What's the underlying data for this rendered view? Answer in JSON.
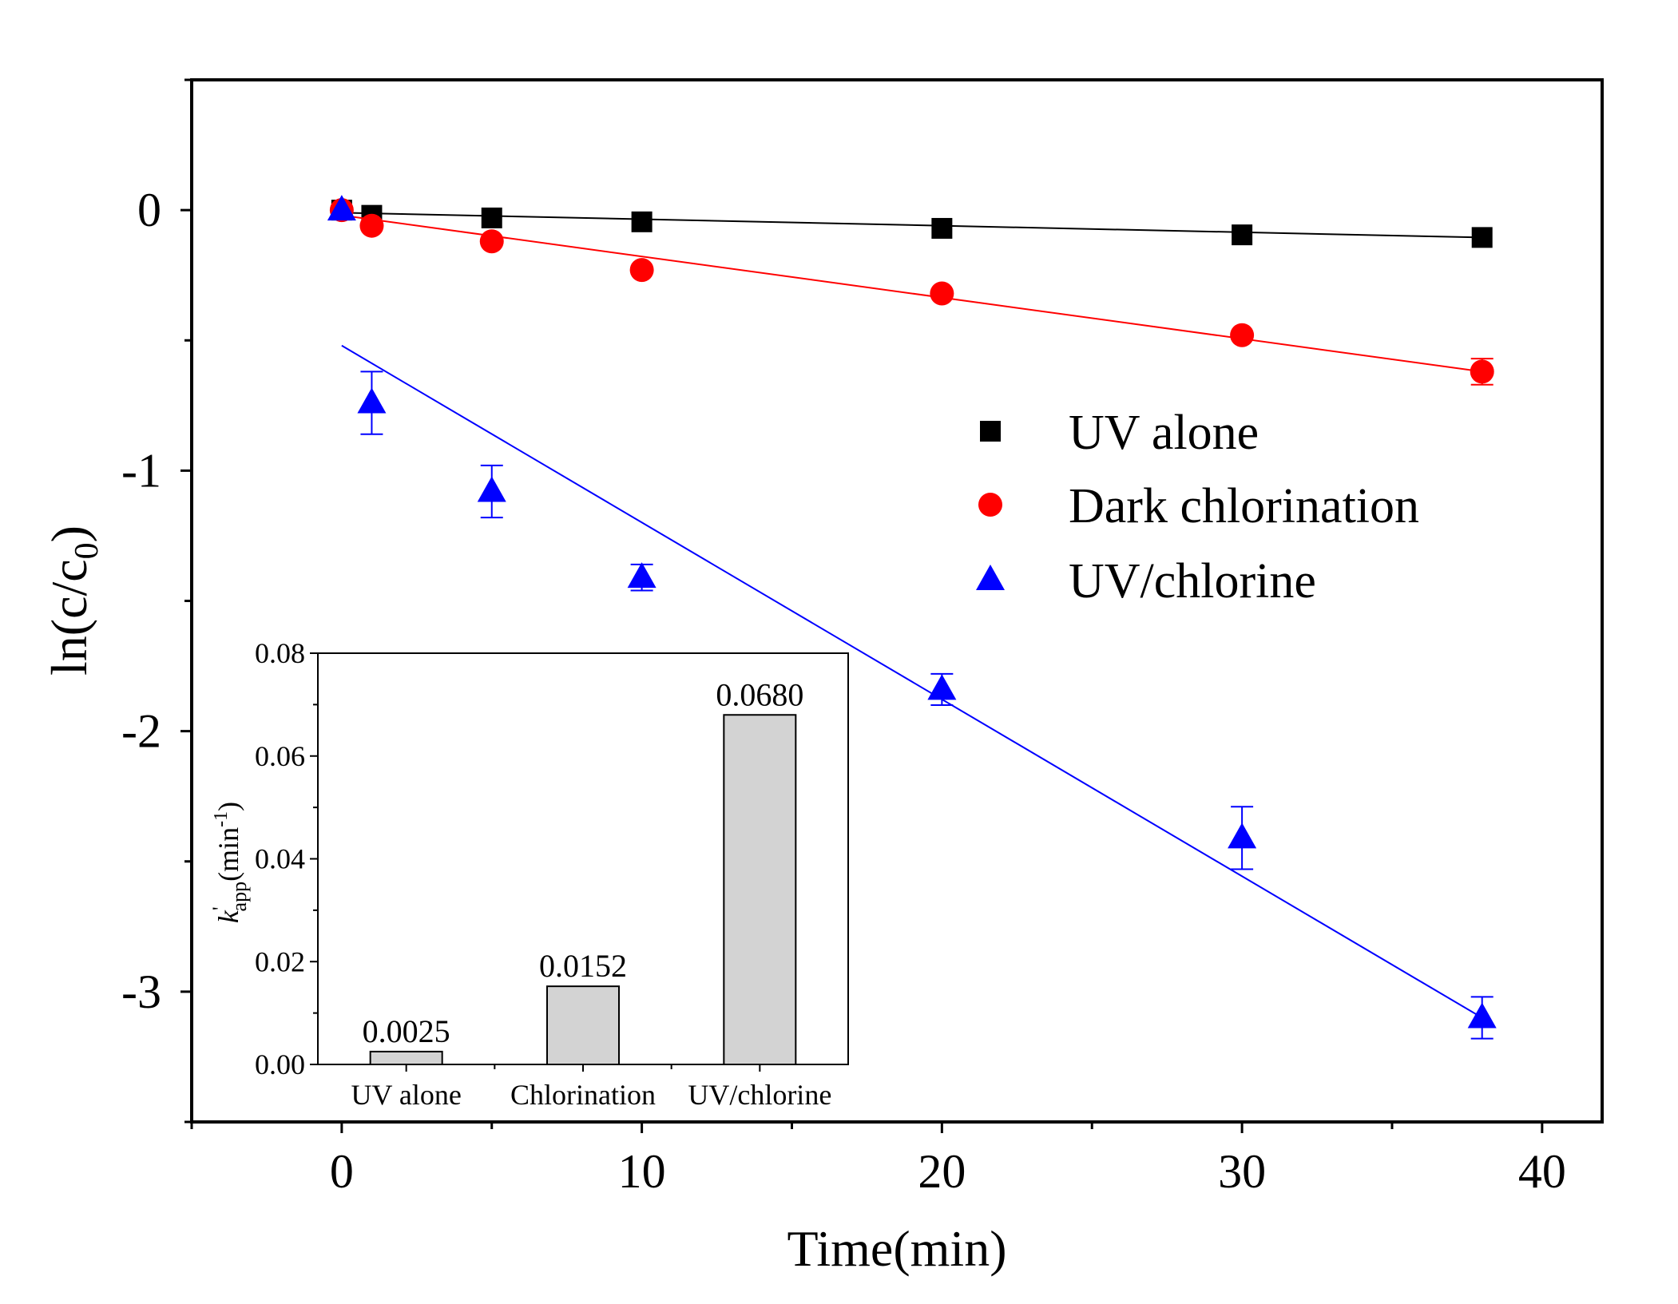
{
  "chart_data": [
    {
      "type": "scatter",
      "title": "",
      "xlabel": "Time(min)",
      "ylabel": "ln(c/c0)",
      "ylabel_parts": {
        "main": "ln(c/c",
        "sub": "0",
        "close": ")"
      },
      "xlim": [
        -5,
        42
      ],
      "ylim": [
        -3.5,
        0.5
      ],
      "xticks": [
        0,
        10,
        20,
        30,
        40
      ],
      "yticks": [
        0,
        -1,
        -2,
        -3
      ],
      "xtick_labels": [
        "0",
        "10",
        "20",
        "30",
        "40"
      ],
      "ytick_labels": [
        "0",
        "-1",
        "-2",
        "-3"
      ],
      "legend_position": "right",
      "series": [
        {
          "name": "UV alone",
          "marker": "square",
          "color": "#000000",
          "x": [
            0,
            1,
            5,
            10,
            20,
            30,
            38
          ],
          "y": [
            0,
            -0.02,
            -0.03,
            -0.045,
            -0.07,
            -0.095,
            -0.105
          ],
          "err": [
            0,
            0,
            0,
            0,
            0,
            0,
            0
          ],
          "fit": {
            "x": [
              0,
              38
            ],
            "y": [
              -0.01,
              -0.105
            ]
          }
        },
        {
          "name": "Dark chlorination",
          "marker": "circle",
          "color": "#ff0000",
          "x": [
            0,
            1,
            5,
            10,
            20,
            30,
            38
          ],
          "y": [
            0,
            -0.06,
            -0.12,
            -0.23,
            -0.32,
            -0.48,
            -0.62
          ],
          "err": [
            0,
            0,
            0,
            0,
            0,
            0,
            0.05
          ],
          "fit": {
            "x": [
              0,
              38
            ],
            "y": [
              -0.02,
              -0.62
            ]
          }
        },
        {
          "name": "UV/chlorine",
          "marker": "triangle",
          "color": "#0000ff",
          "x": [
            0,
            1,
            5,
            10,
            20,
            30,
            38
          ],
          "y": [
            0,
            -0.74,
            -1.08,
            -1.41,
            -1.84,
            -2.41,
            -3.1
          ],
          "err": [
            0,
            0.12,
            0.1,
            0.05,
            0.06,
            0.12,
            0.08
          ],
          "fit": {
            "x": [
              0,
              38
            ],
            "y": [
              -0.52,
              -3.1
            ]
          }
        }
      ]
    },
    {
      "type": "bar",
      "inset": true,
      "categories": [
        "UV alone",
        "Chlorination",
        "UV/chlorine"
      ],
      "values": [
        0.0025,
        0.0152,
        0.068
      ],
      "value_labels": [
        "0.0025",
        "0.0152",
        "0.0680"
      ],
      "ylabel": "k'app(min-1)",
      "ylabel_parts": {
        "k": "k",
        "prime": "'",
        "sub": "app",
        "open": "(min",
        "sup": "-1",
        "close": ")"
      },
      "ylim": [
        0,
        0.08
      ],
      "yticks": [
        0,
        0.02,
        0.04,
        0.06,
        0.08
      ],
      "ytick_labels": [
        "0.00",
        "0.02",
        "0.04",
        "0.06",
        "0.08"
      ],
      "bar_color": "#d3d3d3"
    }
  ]
}
